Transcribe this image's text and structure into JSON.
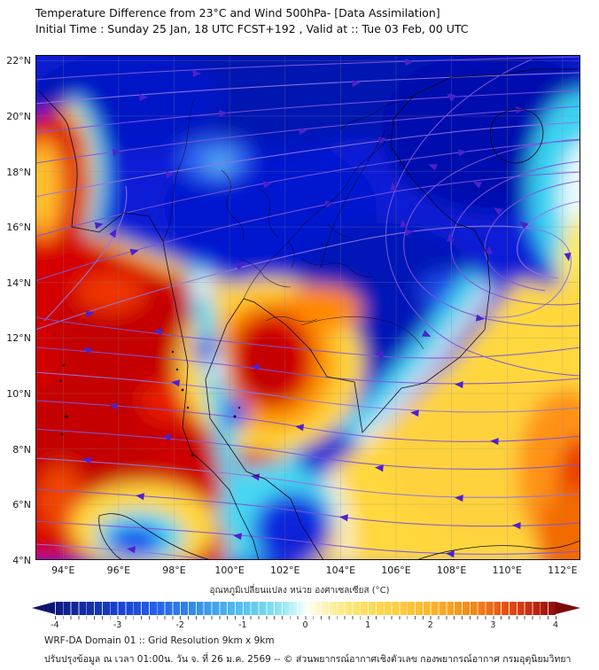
{
  "header": {
    "title_line1": "Temperature Difference from 23°C and Wind 500hPa- [Data Assimilation]",
    "title_line2": "Initial Time : Sunday 25 Jan, 18 UTC FCST+192 , Valid at ::  Tue 03 Feb, 00 UTC"
  },
  "map": {
    "lat_ticks": [
      "22°N",
      "20°N",
      "18°N",
      "16°N",
      "14°N",
      "12°N",
      "10°N",
      "8°N",
      "6°N",
      "4°N"
    ],
    "lon_ticks": [
      "94°E",
      "96°E",
      "98°E",
      "100°E",
      "102°E",
      "104°E",
      "106°E",
      "108°E",
      "110°E",
      "112°E"
    ]
  },
  "colorbar": {
    "label": "อุณหภูมิเปลี่ยนแปลง หน่วย องศาเซลเซียส (°C)",
    "ticks": [
      "-4",
      "-3",
      "-2",
      "-1",
      "0",
      "1",
      "2",
      "3",
      "4"
    ],
    "min": -4,
    "max": 4,
    "units": "°C",
    "key_colors": [
      "#0f1b84",
      "#2e7af0",
      "#63cdf0",
      "#ffffff",
      "#fee36e",
      "#f99c1e",
      "#d63b10",
      "#8f0e0c"
    ]
  },
  "footer": {
    "line1": "WRF-DA Domain 01 :: Grid Resolution 9km x 9km",
    "line2": "ปรับปรุงข้อมูล ณ เวลา 01:00น. วัน จ. ที่ 26 ม.ค. 2569 -- © ส่วนพยากรณ์อากาศเชิงตัวเลข กองพยากรณ์อากาศ กรมอุตุนิยมวิทยา"
  },
  "chart_data": {
    "type": "heatmap",
    "title": "Temperature Difference from 23°C and Wind 500hPa- [Data Assimilation]",
    "lon_range_deg_e": [
      93.0,
      112.6
    ],
    "lat_range_deg_n": [
      3.9,
      22.2
    ],
    "grid": "2-degree graticule, on",
    "colorbar": {
      "min": -4,
      "max": 4,
      "tick_step": 1,
      "units": "°C",
      "style": "discrete cells, arrow ends both sides"
    },
    "field_regions": [
      {
        "area": "Northern Thailand / Laos / northern Vietnam / southern China (14N-22N, 96E-110E)",
        "value_c": -4,
        "color": "deep blue"
      },
      {
        "area": "Andaman Sea and Myanmar southwest quadrant (93E-98E, 4N-14N)",
        "value_c": 4,
        "color": "dark red"
      },
      {
        "area": "West Myanmar coastal blob (93E-94.5E, 16N-20N)",
        "value_c": 3.5,
        "color": "red with yellow-orange core on west edge"
      },
      {
        "area": "Gulf of Thailand warm blob (100E-102E, 9.5N-12.5N)",
        "value_c": 3,
        "color": "red core, orange-yellow ring"
      },
      {
        "area": "South China Sea southeast quadrant (104E-112.5E, 4N-12N)",
        "value_c": 1.5,
        "color": "yellow"
      },
      {
        "area": "Far southeast corner (110.5E-112.5E, 4N-10N)",
        "value_c": 3,
        "color": "orange-red"
      },
      {
        "area": "Cambodia and Mekong delta (103E-107.5E, 8.5N-13.5N)",
        "value_c": -3.5,
        "color": "deep blue with cyan-white fringe"
      },
      {
        "area": "Thai-Malay peninsula strip (98.5E-100.5E, 4N-13N)",
        "value_c": -1.5,
        "color": "cyan with small blue pockets"
      },
      {
        "area": "Sea east of lower peninsula (101.5E-104.5E, 4N-6.5N)",
        "value_c": -3,
        "color": "deep blue"
      },
      {
        "area": "Northern Sumatra (95.5E-98E, 4N-5.5N)",
        "value_c": -2,
        "color": "cyan-blue core with yellow ring"
      },
      {
        "area": "Right edge band east of Hainan (111.5E-112.5E, 13N-19N)",
        "value_c": 0,
        "color": "cyan-white-yellow gradient"
      }
    ],
    "streamlines": {
      "level": "500hPa",
      "color": "purple-violet with dark violet arrowheads",
      "pattern": [
        "westerlies with eastward arrows across the north (18N-22N)",
        "anticyclonic arcs curving through the east-center (105E-112E, 12N-18N) with southwest-pointing arrows",
        "easterlies with westward arrows across the whole south (4N-13N)",
        "southwest-to-northeast ascending flow over Myanmar in the west"
      ]
    }
  }
}
